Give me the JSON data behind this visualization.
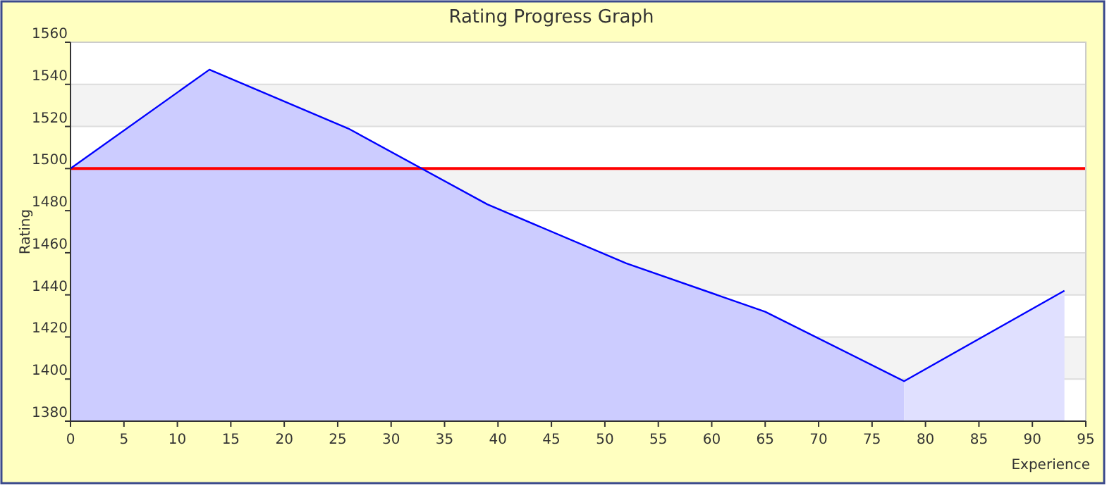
{
  "chart_data": {
    "type": "area",
    "title": "Rating Progress Graph",
    "xlabel": "Experience",
    "ylabel": "Rating",
    "xlim": [
      0,
      95
    ],
    "xticks": [
      0,
      5,
      10,
      15,
      20,
      25,
      30,
      35,
      40,
      45,
      50,
      55,
      60,
      65,
      70,
      75,
      80,
      85,
      90,
      95
    ],
    "ylim": [
      1380,
      1560
    ],
    "yticks": [
      1380,
      1400,
      1420,
      1440,
      1460,
      1480,
      1500,
      1520,
      1540,
      1560
    ],
    "grid": "y",
    "series": [
      {
        "color": "#ccccff",
        "x": [
          0,
          13,
          26,
          39,
          52,
          65,
          78
        ],
        "values": [
          1500,
          1547,
          1519,
          1483,
          1455,
          1432,
          1399
        ]
      },
      {
        "color": "#e0e0ff",
        "x": [
          78,
          93
        ],
        "values": [
          1399,
          1442
        ]
      },
      {
        "type": "line",
        "color": "#0000ff",
        "x": [
          0,
          13,
          26,
          39,
          52,
          65,
          78,
          93
        ],
        "values": [
          1500,
          1547,
          1519,
          1483,
          1455,
          1432,
          1399,
          1442
        ]
      }
    ],
    "ref_lines": [
      {
        "axis": "y",
        "value": 1500,
        "color": "#ff0000"
      }
    ]
  }
}
